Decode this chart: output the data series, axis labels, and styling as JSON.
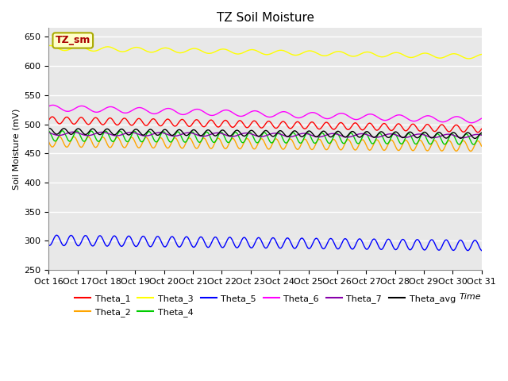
{
  "title": "TZ Soil Moisture",
  "ylabel": "Soil Moisture (mV)",
  "xlabel": "Time",
  "ylim": [
    250,
    665
  ],
  "yticks": [
    250,
    300,
    350,
    400,
    450,
    500,
    550,
    600,
    650
  ],
  "xtick_labels": [
    "Oct 16",
    "Oct 17",
    "Oct 18",
    "Oct 19",
    "Oct 20",
    "Oct 21",
    "Oct 22",
    "Oct 23",
    "Oct 24",
    "Oct 25",
    "Oct 26",
    "Oct 27",
    "Oct 28",
    "Oct 29",
    "Oct 30",
    "Oct 31"
  ],
  "num_points": 480,
  "series_order": [
    "Theta_1",
    "Theta_2",
    "Theta_3",
    "Theta_4",
    "Theta_5",
    "Theta_6",
    "Theta_7",
    "Theta_avg"
  ],
  "series": {
    "Theta_1": {
      "color": "#FF0000",
      "base": 507,
      "trend": -1.0,
      "amp": 6,
      "freq": 2.0,
      "phase": 0.0
    },
    "Theta_2": {
      "color": "#FFA500",
      "base": 470,
      "trend": -0.5,
      "amp": 9,
      "freq": 2.0,
      "phase": 0.5
    },
    "Theta_3": {
      "color": "#FFFF00",
      "base": 631,
      "trend": -1.0,
      "amp": 4,
      "freq": 1.0,
      "phase": 0.2
    },
    "Theta_4": {
      "color": "#00CC00",
      "base": 480,
      "trend": -0.4,
      "amp": 9,
      "freq": 2.0,
      "phase": 0.3
    },
    "Theta_5": {
      "color": "#0000FF",
      "base": 301,
      "trend": -0.6,
      "amp": 9,
      "freq": 2.0,
      "phase": 0.7
    },
    "Theta_6": {
      "color": "#FF00FF",
      "base": 528,
      "trend": -1.4,
      "amp": 5,
      "freq": 1.0,
      "phase": 0.1
    },
    "Theta_7": {
      "color": "#8800AA",
      "base": 484,
      "trend": -0.3,
      "amp": 3,
      "freq": 1.0,
      "phase": 0.4
    },
    "Theta_avg": {
      "color": "#000000",
      "base": 488,
      "trend": -0.5,
      "amp": 5,
      "freq": 2.0,
      "phase": 0.2
    }
  },
  "legend_box_label": "TZ_sm",
  "legend_box_facecolor": "#FFFFC8",
  "legend_box_edgecolor": "#AAAA00",
  "bg_color": "#E8E8E8",
  "plot_bg": "#E8E8E8",
  "title_fontsize": 11,
  "axis_fontsize": 8,
  "tick_fontsize": 8,
  "legend_order": [
    "Theta_1",
    "Theta_2",
    "Theta_3",
    "Theta_4",
    "Theta_5",
    "Theta_6",
    "Theta_7",
    "Theta_avg"
  ]
}
